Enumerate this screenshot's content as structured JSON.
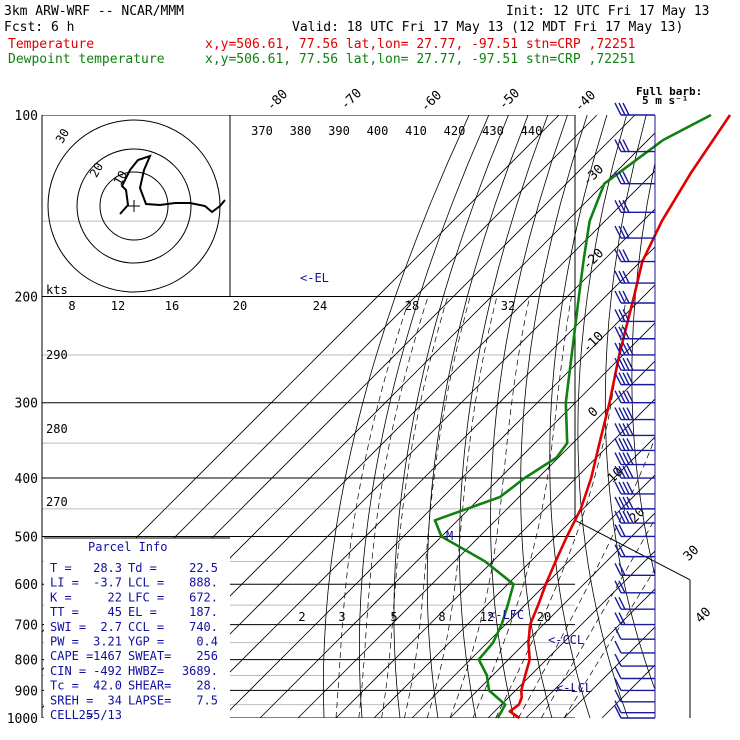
{
  "header": {
    "title": "3km ARW-WRF -- NCAR/MMM",
    "init": "Init: 12 UTC Fri 17 May 13",
    "fcst": "Fcst:     6 h",
    "valid": "Valid: 18 UTC Fri 17 May 13 (12 MDT Fri 17 May 13)",
    "temp_label": "Temperature",
    "dew_label": "Dewpoint temperature",
    "temp_loc": "x,y=506.61, 77.56   lat,lon= 27.77, -97.51   stn=CRP ,72251",
    "dew_loc": "x,y=506.61, 77.56   lat,lon= 27.77, -97.51   stn=CRP ,72251"
  },
  "colors": {
    "temperature": "#e00000",
    "dewpoint": "#108010",
    "parcel": "#1010a0",
    "wind": "#1a1a9a"
  },
  "chart_data": {
    "type": "line",
    "title": "Skew-T log-P sounding",
    "pressure_axis": {
      "ticks": [
        {
          "p": 100,
          "label": "100"
        },
        {
          "p": 200,
          "label": "200"
        },
        {
          "p": 300,
          "label": "300"
        },
        {
          "p": 400,
          "label": "400"
        },
        {
          "p": 500,
          "label": "500"
        },
        {
          "p": 600,
          "label": "600"
        },
        {
          "p": 700,
          "label": "700"
        },
        {
          "p": 800,
          "label": "800"
        },
        {
          "p": 900,
          "label": "900"
        },
        {
          "p": 1000,
          "label": "1000"
        }
      ],
      "scale": "log",
      "range_hPa": [
        1000,
        100
      ]
    },
    "isotherm_labels": [
      {
        "t": -80,
        "label": "-80"
      },
      {
        "t": -70,
        "label": "-70"
      },
      {
        "t": -60,
        "label": "-60"
      },
      {
        "t": -50,
        "label": "-50"
      },
      {
        "t": -40,
        "label": "-40"
      },
      {
        "t": -30,
        "label": "-30"
      },
      {
        "t": -20,
        "label": "-20"
      },
      {
        "t": -10,
        "label": "-10"
      },
      {
        "t": 0,
        "label": "0"
      },
      {
        "t": 10,
        "label": "10"
      },
      {
        "t": 20,
        "label": "20"
      },
      {
        "t": 30,
        "label": "30"
      },
      {
        "t": 40,
        "label": "40"
      }
    ],
    "theta_labels": [
      "370",
      "380",
      "390",
      "400",
      "410",
      "420",
      "430",
      "440"
    ],
    "mixing_ratio_labels": [
      "2",
      "3",
      "5",
      "8",
      "12",
      "20"
    ],
    "dry_adiabat_side_labels": [
      {
        "label": "290"
      },
      {
        "label": "280"
      },
      {
        "label": "270"
      }
    ],
    "series": [
      {
        "name": "Temperature",
        "points": [
          {
            "p": 1000,
            "t": 28.3
          },
          {
            "p": 975,
            "t": 24.0
          },
          {
            "p": 950,
            "t": 24.6
          },
          {
            "p": 925,
            "t": 23.5
          },
          {
            "p": 900,
            "t": 21.5
          },
          {
            "p": 850,
            "t": 18.6
          },
          {
            "p": 800,
            "t": 15.6
          },
          {
            "p": 750,
            "t": 10.8
          },
          {
            "p": 700,
            "t": 6.5
          },
          {
            "p": 650,
            "t": 3.5
          },
          {
            "p": 600,
            "t": 0.0
          },
          {
            "p": 550,
            "t": -3.4
          },
          {
            "p": 500,
            "t": -7.0
          },
          {
            "p": 450,
            "t": -10.6
          },
          {
            "p": 400,
            "t": -16.0
          },
          {
            "p": 350,
            "t": -23.0
          },
          {
            "p": 300,
            "t": -31.0
          },
          {
            "p": 250,
            "t": -41.0
          },
          {
            "p": 200,
            "t": -52.5
          },
          {
            "p": 175,
            "t": -59.5
          },
          {
            "p": 150,
            "t": -65.0
          },
          {
            "p": 125,
            "t": -70.0
          },
          {
            "p": 100,
            "t": -75.0
          }
        ]
      },
      {
        "name": "Dewpoint temperature",
        "points": [
          {
            "p": 1000,
            "t": 22.5
          },
          {
            "p": 975,
            "t": 21.8
          },
          {
            "p": 950,
            "t": 21.0
          },
          {
            "p": 900,
            "t": 13.0
          },
          {
            "p": 850,
            "t": 8.5
          },
          {
            "p": 800,
            "t": 2.2
          },
          {
            "p": 750,
            "t": 1.5
          },
          {
            "p": 700,
            "t": -1.0
          },
          {
            "p": 650,
            "t": -4.5
          },
          {
            "p": 600,
            "t": -8.5
          },
          {
            "p": 550,
            "t": -22.0
          },
          {
            "p": 500,
            "t": -40.0
          },
          {
            "p": 470,
            "t": -46.0
          },
          {
            "p": 430,
            "t": -35.0
          },
          {
            "p": 400,
            "t": -33.5
          },
          {
            "p": 370,
            "t": -30.5
          },
          {
            "p": 350,
            "t": -31.5
          },
          {
            "p": 300,
            "t": -42.5
          },
          {
            "p": 250,
            "t": -53.5
          },
          {
            "p": 200,
            "t": -67.0
          },
          {
            "p": 175,
            "t": -75.0
          },
          {
            "p": 150,
            "t": -84.0
          },
          {
            "p": 130,
            "t": -90.0
          },
          {
            "p": 110,
            "t": -86.0
          },
          {
            "p": 100,
            "t": -80.0
          }
        ]
      }
    ],
    "level_markers": [
      {
        "label": "<-EL",
        "p": 187
      },
      {
        "label": "<-LFC",
        "p": 672
      },
      {
        "label": "<-CCL",
        "p": 740
      },
      {
        "label": "<-LCL",
        "p": 888
      },
      {
        "label": "M",
        "p": 500
      }
    ],
    "hodograph": {
      "speed_ring_labels": [
        "10",
        "20",
        "30"
      ],
      "kts_label": "kts",
      "top_axis_labels": [
        "8",
        "12",
        "16",
        "20",
        "24",
        "28",
        "32"
      ]
    },
    "wind_profile": {
      "header": "Full barb:",
      "subheader": "5 m s⁻¹",
      "levels": [
        100,
        115,
        130,
        145,
        160,
        175,
        190,
        205,
        220,
        235,
        250,
        265,
        280,
        300,
        320,
        340,
        360,
        380,
        400,
        425,
        450,
        475,
        500,
        540,
        580,
        620,
        660,
        700,
        740,
        780,
        820,
        860,
        900,
        940,
        980,
        1000
      ]
    }
  },
  "parcel_info": {
    "title": "Parcel Info",
    "rows": [
      [
        "T  =",
        "28.3",
        "Td =",
        "22.5"
      ],
      [
        "LI =",
        "-3.7",
        "LCL =",
        "888."
      ],
      [
        "K  =",
        "22",
        "LFC =",
        "672."
      ],
      [
        "TT =",
        "45",
        "EL =",
        "187."
      ],
      [
        "SWI =",
        "2.7",
        "CCL =",
        "740."
      ],
      [
        "PW =",
        "3.21",
        "YGP =",
        "0.4"
      ],
      [
        "CAPE =",
        "1467",
        "SWEAT=",
        "256"
      ],
      [
        "CIN =",
        "-492",
        "HWBZ=",
        "3689."
      ],
      [
        "Tc =",
        "42.0",
        "SHEAR=",
        "28."
      ],
      [
        "SREH =",
        "34",
        "LAPSE=",
        "7.5"
      ],
      [
        "CELL =",
        "255/13",
        "",
        ""
      ]
    ]
  }
}
